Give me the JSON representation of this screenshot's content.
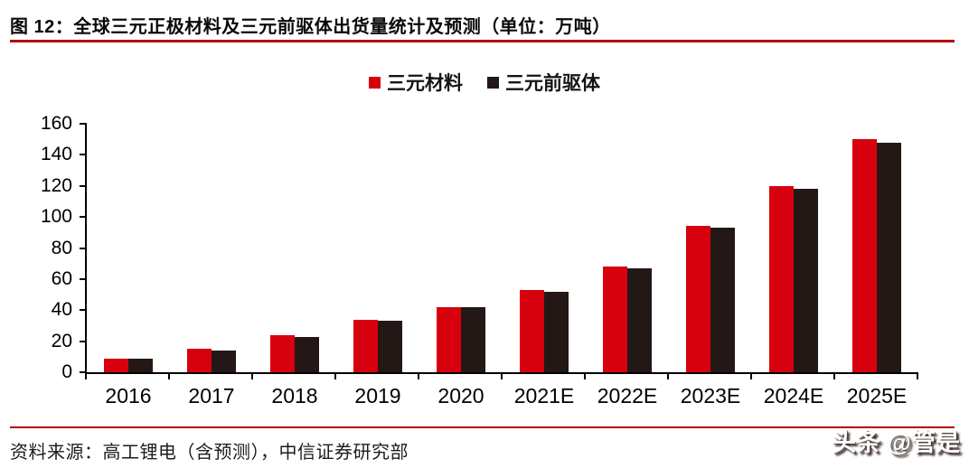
{
  "figure": {
    "title": "图 12：全球三元正极材料及三元前驱体出货量统计及预测（单位：万吨）",
    "source": "资料来源：高工锂电（含预测），中信证券研究部",
    "watermark": "头条 @管是",
    "rule_color": "#b20000"
  },
  "legend": {
    "items": [
      {
        "label": "三元材料",
        "color": "#d7000f"
      },
      {
        "label": "三元前驱体",
        "color": "#231815"
      }
    ]
  },
  "chart_data": {
    "type": "bar",
    "title": "全球三元正极材料及三元前驱体出货量统计及预测",
    "unit": "万吨",
    "categories": [
      "2016",
      "2017",
      "2018",
      "2019",
      "2020",
      "2021E",
      "2022E",
      "2023E",
      "2024E",
      "2025E"
    ],
    "series": [
      {
        "name": "三元材料",
        "color": "#d7000f",
        "values": [
          9,
          15,
          24,
          34,
          42,
          53,
          68,
          94,
          120,
          150
        ]
      },
      {
        "name": "三元前驱体",
        "color": "#231815",
        "values": [
          9,
          14,
          23,
          33,
          42,
          52,
          67,
          93,
          118,
          148
        ]
      }
    ],
    "xlabel": "",
    "ylabel": "",
    "ylim": [
      0,
      160
    ],
    "yticks": [
      0,
      20,
      40,
      60,
      80,
      100,
      120,
      140,
      160
    ],
    "grid": false,
    "legend_position": "top-center"
  }
}
